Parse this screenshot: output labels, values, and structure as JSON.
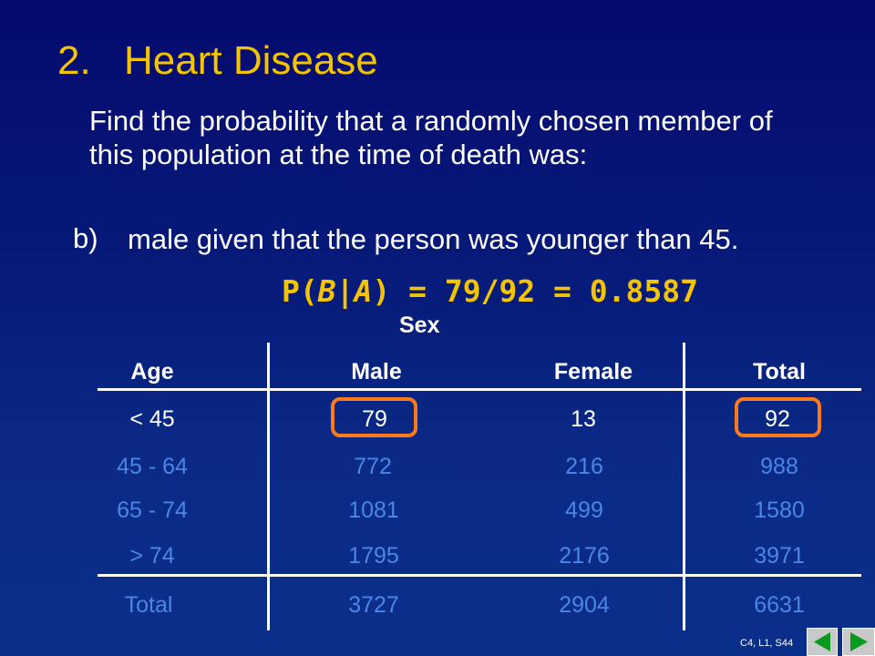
{
  "title": {
    "number": "2.",
    "text": "Heart Disease"
  },
  "intro": "Find the probability that a randomly chosen member of this population at the time of death was:",
  "part": {
    "label": "b)",
    "text": "male given that the person was younger than 45."
  },
  "formula": {
    "prefix": "P(",
    "event_b": "B",
    "bar": "|",
    "event_a": "A",
    "suffix": ") = 79/92 = 0.8587"
  },
  "table": {
    "group_header": "Sex",
    "columns": [
      "Age",
      "Male",
      "Female",
      "Total"
    ],
    "rows": [
      [
        "< 45",
        "79",
        "13",
        "92"
      ],
      [
        "45 - 64",
        "772",
        "216",
        "988"
      ],
      [
        "65 - 74",
        "1081",
        "499",
        "1580"
      ],
      [
        "> 74",
        "1795",
        "2176",
        "3971"
      ]
    ],
    "total_row": [
      "Total",
      "3727",
      "2904",
      "6631"
    ]
  },
  "colors": {
    "title": "#f5c400",
    "formula": "#f5c400",
    "table_values": "#4a86e8",
    "highlight": "#ff7a1a"
  },
  "footer": {
    "reference": "C4, L1, S44"
  },
  "nav": {
    "back_icon": "triangle-left-icon",
    "forward_icon": "triangle-right-icon"
  }
}
